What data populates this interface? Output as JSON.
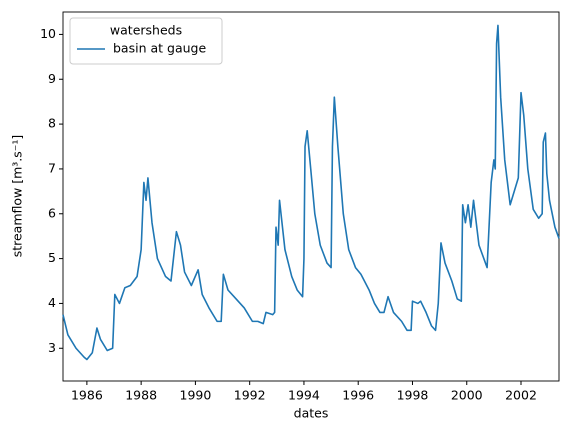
{
  "chart_data": {
    "type": "line",
    "x_label": "dates",
    "y_label": "streamflow [m³.s⁻¹]",
    "legend_title": "watersheds",
    "legend": "upper left",
    "xlim": [
      1985.12,
      2003.4
    ],
    "xticks": [
      1986,
      1988,
      1990,
      1992,
      1994,
      1996,
      1998,
      2000,
      2002
    ],
    "ylim": [
      2.27,
      10.5
    ],
    "yticks": [
      3,
      4,
      5,
      6,
      7,
      8,
      9,
      10
    ],
    "x": [
      1985.12,
      1985.3,
      1985.6,
      1985.9,
      1986.0,
      1986.2,
      1986.37,
      1986.5,
      1986.75,
      1986.95,
      1987.03,
      1987.2,
      1987.4,
      1987.6,
      1987.85,
      1988.0,
      1988.1,
      1988.18,
      1988.25,
      1988.4,
      1988.6,
      1988.9,
      1989.1,
      1989.3,
      1989.45,
      1989.6,
      1989.85,
      1990.1,
      1990.25,
      1990.5,
      1990.8,
      1990.95,
      1991.03,
      1991.2,
      1991.5,
      1991.8,
      1992.1,
      1992.3,
      1992.5,
      1992.6,
      1992.85,
      1992.92,
      1992.97,
      1993.05,
      1993.1,
      1993.3,
      1993.55,
      1993.75,
      1993.95,
      1994.0,
      1994.04,
      1994.12,
      1994.25,
      1994.4,
      1994.6,
      1994.85,
      1995.0,
      1995.05,
      1995.12,
      1995.25,
      1995.45,
      1995.65,
      1995.9,
      1996.1,
      1996.4,
      1996.6,
      1996.8,
      1996.95,
      1997.1,
      1997.3,
      1997.6,
      1997.8,
      1997.95,
      1998.0,
      1998.2,
      1998.3,
      1998.5,
      1998.7,
      1998.85,
      1998.95,
      1999.05,
      1999.2,
      1999.45,
      1999.65,
      1999.8,
      1999.85,
      1999.95,
      2000.05,
      2000.15,
      2000.25,
      2000.45,
      2000.75,
      2000.9,
      2001.0,
      2001.05,
      2001.1,
      2001.15,
      2001.25,
      2001.4,
      2001.6,
      2001.75,
      2001.9,
      2002.0,
      2002.1,
      2002.25,
      2002.45,
      2002.65,
      2002.78,
      2002.82,
      2002.9,
      2002.95,
      2003.05,
      2003.25,
      2003.4
    ],
    "series": [
      {
        "name": "basin at gauge",
        "color": "#1f77b4",
        "values": [
          3.75,
          3.3,
          3.0,
          2.8,
          2.75,
          2.9,
          3.45,
          3.2,
          2.95,
          3.0,
          4.2,
          4.0,
          4.35,
          4.4,
          4.6,
          5.2,
          6.7,
          6.3,
          6.8,
          5.8,
          5.0,
          4.6,
          4.5,
          5.6,
          5.3,
          4.7,
          4.4,
          4.75,
          4.2,
          3.9,
          3.6,
          3.6,
          4.65,
          4.3,
          4.1,
          3.9,
          3.6,
          3.6,
          3.55,
          3.8,
          3.75,
          3.8,
          5.7,
          5.3,
          6.3,
          5.2,
          4.6,
          4.3,
          4.15,
          5.0,
          7.5,
          7.85,
          7.0,
          6.0,
          5.3,
          4.9,
          4.8,
          7.5,
          8.6,
          7.5,
          6.0,
          5.2,
          4.8,
          4.65,
          4.3,
          4.0,
          3.8,
          3.8,
          4.15,
          3.8,
          3.6,
          3.4,
          3.4,
          4.05,
          4.0,
          4.05,
          3.8,
          3.5,
          3.4,
          4.0,
          5.35,
          4.9,
          4.5,
          4.1,
          4.05,
          6.2,
          5.8,
          6.2,
          5.7,
          6.3,
          5.3,
          4.8,
          6.7,
          7.2,
          7.0,
          9.8,
          10.2,
          8.6,
          7.2,
          6.2,
          6.5,
          6.8,
          8.7,
          8.2,
          7.0,
          6.1,
          5.9,
          6.0,
          7.6,
          7.8,
          6.9,
          6.3,
          5.7,
          5.45
        ]
      }
    ]
  }
}
